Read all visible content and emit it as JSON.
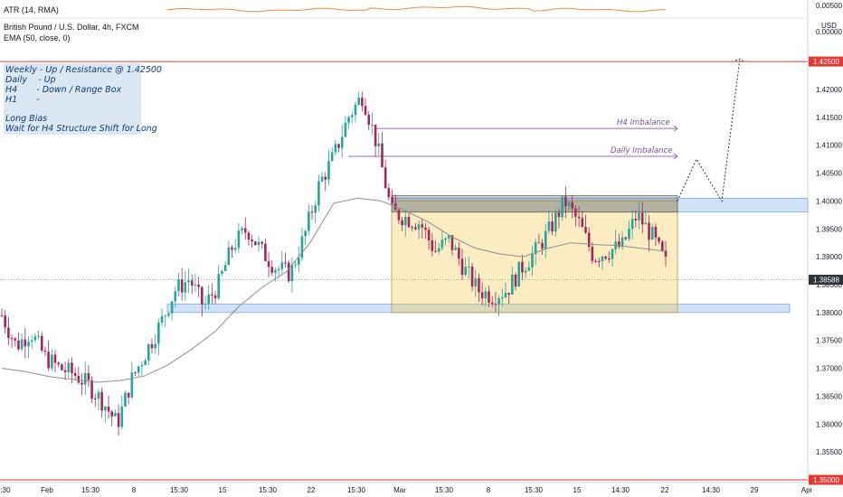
{
  "header": {
    "atr_label": "ATR (14, RMA)",
    "symbol_label": "British Pound / U.S. Dollar, 4h, FXCM",
    "ema_label": "EMA (50, close, 0)",
    "currency": "USD"
  },
  "atr_axis": [
    "0.00500",
    "0.00000"
  ],
  "colors": {
    "up": "#26a69a",
    "down": "#a3275c",
    "ema": "#8d8d8d",
    "atr": "#f0883a",
    "resistance": "#e53935",
    "range_box": "#f5c542",
    "range_top_band": "#777777",
    "support_zone": "#a8cbef",
    "imbalance": "#9c6bc0"
  },
  "notes": [
    "Weekly - Up / Resistance @ 1.42500",
    "Daily    - Up",
    "H4       - Down / Range Box",
    "H1       -",
    "",
    "Long Bias",
    "Wait for H4 Structure Shift for Long"
  ],
  "annotations": {
    "h4_imbalance": "H4 Imbalance",
    "daily_imbalance": "Daily Imbalance"
  },
  "chart_data": {
    "type": "candlestick",
    "timeframe": "4h",
    "y_ticks": [
      "1.42000",
      "1.41500",
      "1.41000",
      "1.40500",
      "1.40000",
      "1.39500",
      "1.39000",
      "1.38500",
      "1.38000",
      "1.37500",
      "1.37000",
      "1.36500",
      "1.36000",
      "1.35500"
    ],
    "x_ticks": [
      ":30",
      "Feb",
      "15:30",
      "8",
      "15:30",
      "15",
      "15:30",
      "22",
      "15:30",
      "Mar",
      "15:30",
      "8",
      "15:30",
      "15",
      "14:30",
      "22",
      "14:30",
      "29",
      "Apr"
    ],
    "ylim": [
      1.3512,
      1.4292
    ],
    "resistance_level": "1.42500",
    "bottom_level": "1.35000",
    "current_price": "1.38588",
    "range_box": [
      1.38,
      1.4
    ],
    "range_top_band": [
      1.398,
      1.401
    ],
    "support_zone": [
      1.38,
      1.3815
    ],
    "upper_zone": [
      1.398,
      1.4005
    ],
    "h4_imbalance_level": 1.413,
    "daily_imbalance_level": 1.408,
    "projection": [
      1.4,
      1.4075,
      1.4,
      1.4255
    ],
    "price_path": [
      1.3795,
      1.374,
      1.3765,
      1.372,
      1.37,
      1.369,
      1.367,
      1.364,
      1.36,
      1.368,
      1.373,
      1.378,
      1.384,
      1.386,
      1.381,
      1.385,
      1.392,
      1.395,
      1.391,
      1.388,
      1.387,
      1.394,
      1.403,
      1.408,
      1.415,
      1.419,
      1.41,
      1.398,
      1.397,
      1.396,
      1.391,
      1.393,
      1.388,
      1.384,
      1.383,
      1.384,
      1.388,
      1.391,
      1.395,
      1.4,
      1.396,
      1.39,
      1.391,
      1.392,
      1.3975,
      1.394,
      1.3888
    ],
    "ema_path": [
      1.37,
      1.3694,
      1.3685,
      1.368,
      1.3675,
      1.3678,
      1.3686,
      1.3706,
      1.3734,
      1.3766,
      1.3811,
      1.3846,
      1.3873,
      1.3925,
      1.3996,
      1.4005,
      1.4,
      1.3983,
      1.3962,
      1.3935,
      1.3915,
      1.3905,
      1.39,
      1.3915,
      1.3925,
      1.3922,
      1.392,
      1.3915,
      1.391
    ]
  }
}
